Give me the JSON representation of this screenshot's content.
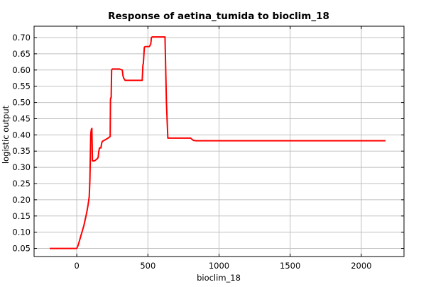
{
  "chart_data": {
    "type": "line",
    "title": "Response of aetina_tumida to bioclim_18",
    "xlabel": "bioclim_18",
    "ylabel": "logistic output",
    "xlim": [
      -300,
      2300
    ],
    "ylim": [
      0.025,
      0.735
    ],
    "xticks": [
      0,
      500,
      1000,
      1500,
      2000
    ],
    "yticks": [
      0.05,
      0.1,
      0.15,
      0.2,
      0.25,
      0.3,
      0.35,
      0.4,
      0.45,
      0.5,
      0.55,
      0.6,
      0.65,
      0.7
    ],
    "grid": true,
    "legend": "none",
    "colors": {
      "line": "#ff0000",
      "grid": "#c0c0c0",
      "axis": "#000000"
    },
    "series": [
      {
        "x": [
          -190,
          0,
          10,
          20,
          30,
          40,
          50,
          60,
          70,
          80,
          88,
          92,
          95,
          98,
          100,
          103,
          106,
          110,
          125,
          140,
          150,
          155,
          160,
          170,
          175,
          180,
          200,
          220,
          235,
          237,
          240,
          242,
          245,
          250,
          270,
          300,
          320,
          325,
          330,
          340,
          350,
          400,
          430,
          460,
          465,
          468,
          475,
          480,
          490,
          510,
          520,
          525,
          530,
          560,
          600,
          620,
          625,
          630,
          640,
          660,
          700,
          750,
          800,
          820,
          840,
          900,
          1000,
          1500,
          2000,
          2170
        ],
        "y": [
          0.05,
          0.05,
          0.06,
          0.075,
          0.09,
          0.105,
          0.12,
          0.14,
          0.16,
          0.185,
          0.21,
          0.26,
          0.33,
          0.4,
          0.41,
          0.418,
          0.42,
          0.32,
          0.32,
          0.325,
          0.33,
          0.35,
          0.36,
          0.36,
          0.375,
          0.38,
          0.385,
          0.39,
          0.395,
          0.51,
          0.515,
          0.515,
          0.6,
          0.603,
          0.603,
          0.603,
          0.6,
          0.583,
          0.575,
          0.568,
          0.568,
          0.568,
          0.568,
          0.568,
          0.615,
          0.62,
          0.67,
          0.672,
          0.672,
          0.672,
          0.68,
          0.7,
          0.702,
          0.702,
          0.702,
          0.702,
          0.6,
          0.5,
          0.39,
          0.39,
          0.39,
          0.39,
          0.39,
          0.383,
          0.382,
          0.382,
          0.382,
          0.382,
          0.382,
          0.382
        ]
      }
    ]
  }
}
